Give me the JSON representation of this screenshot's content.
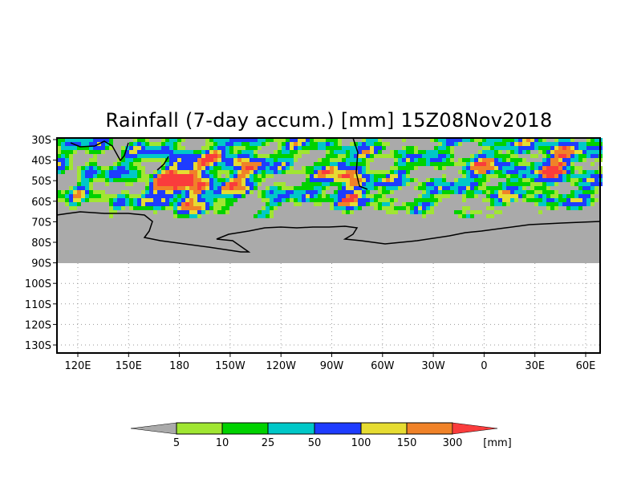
{
  "title": "Rainfall (7-day accum.) [mm] 15Z08Nov2018",
  "map": {
    "lat_labels": [
      "30S",
      "40S",
      "50S",
      "60S",
      "70S",
      "80S",
      "90S",
      "100S",
      "110S",
      "120S",
      "130S"
    ],
    "lon_labels": [
      "120E",
      "150E",
      "180",
      "150W",
      "120W",
      "90W",
      "60W",
      "30W",
      "0",
      "30E",
      "60E"
    ],
    "missing_color": "#aaaaaa"
  },
  "colorbar": {
    "levels": [
      "5",
      "10",
      "25",
      "50",
      "100",
      "150",
      "300"
    ],
    "unit": "[mm]",
    "colors": [
      "#aaaaaa",
      "#a0e632",
      "#00d200",
      "#00c8c8",
      "#1e3cff",
      "#e6dc32",
      "#f08228",
      "#fa3c3c"
    ]
  }
}
